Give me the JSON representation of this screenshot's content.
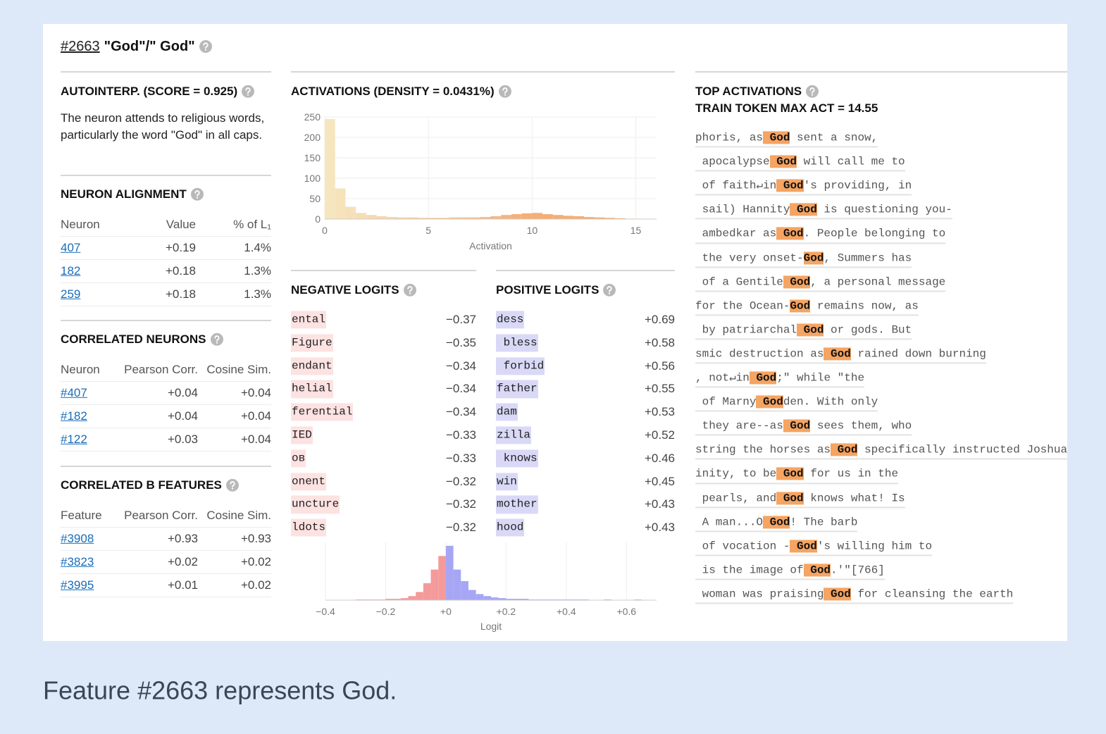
{
  "header": {
    "id": "#2663",
    "title": "\"God\"/\" God\""
  },
  "autointerp": {
    "heading": "AUTOINTERP. (SCORE = 0.925)",
    "text": "The neuron attends to religious words, particularly the word \"God\" in all caps."
  },
  "neuron_alignment": {
    "heading": "NEURON ALIGNMENT",
    "columns": [
      "Neuron",
      "Value",
      "% of L₁"
    ],
    "rows": [
      [
        "407",
        "+0.19",
        "1.4%"
      ],
      [
        "182",
        "+0.18",
        "1.3%"
      ],
      [
        "259",
        "+0.18",
        "1.3%"
      ]
    ]
  },
  "correlated_neurons": {
    "heading": "CORRELATED NEURONS",
    "columns": [
      "Neuron",
      "Pearson Corr.",
      "Cosine Sim."
    ],
    "rows": [
      [
        "#407",
        "+0.04",
        "+0.04"
      ],
      [
        "#182",
        "+0.04",
        "+0.04"
      ],
      [
        "#122",
        "+0.03",
        "+0.04"
      ]
    ]
  },
  "correlated_features": {
    "heading": "CORRELATED B FEATURES",
    "columns": [
      "Feature",
      "Pearson Corr.",
      "Cosine Sim."
    ],
    "rows": [
      [
        "#3908",
        "+0.93",
        "+0.93"
      ],
      [
        "#3823",
        "+0.02",
        "+0.02"
      ],
      [
        "#3995",
        "+0.01",
        "+0.02"
      ]
    ]
  },
  "activations": {
    "heading": "ACTIVATIONS (DENSITY = 0.0431%)",
    "chart": {
      "type": "histogram",
      "x_label": "Activation",
      "bins": [
        0,
        0.5,
        1,
        1.5,
        2,
        2.5,
        3,
        3.5,
        4,
        4.5,
        5,
        5.5,
        6,
        6.5,
        7,
        7.5,
        8,
        8.5,
        9,
        9.5,
        10,
        10.5,
        11,
        11.5,
        12,
        12.5,
        13,
        13.5,
        14,
        14.5,
        15
      ],
      "counts": [
        245,
        75,
        30,
        15,
        10,
        7,
        5,
        4,
        4,
        3,
        3,
        3,
        4,
        4,
        4,
        5,
        7,
        10,
        12,
        14,
        15,
        12,
        10,
        8,
        7,
        5,
        4,
        3,
        2,
        1
      ],
      "xlim": [
        0,
        16
      ],
      "ylim": [
        0,
        250
      ],
      "xticks": [
        0,
        5,
        10,
        15
      ],
      "yticks": [
        0,
        50,
        100,
        150,
        200,
        250
      ],
      "color_low": "#f6e7c2",
      "color_high": "#f6ad72",
      "grid": true
    }
  },
  "negative_logits": {
    "heading": "NEGATIVE LOGITS",
    "color": "#fde2e2",
    "rows": [
      [
        "ental",
        "−0.37"
      ],
      [
        "Figure",
        "−0.35"
      ],
      [
        "endant",
        "−0.34"
      ],
      [
        "helial",
        "−0.34"
      ],
      [
        "ferential",
        "−0.34"
      ],
      [
        "IED",
        "−0.33"
      ],
      [
        "ов",
        "−0.33"
      ],
      [
        "onent",
        "−0.32"
      ],
      [
        "uncture",
        "−0.32"
      ],
      [
        "ldots",
        "−0.32"
      ]
    ]
  },
  "positive_logits": {
    "heading": "POSITIVE LOGITS",
    "color": "#d9d9f7",
    "rows": [
      [
        "dess",
        "+0.69"
      ],
      [
        " bless",
        "+0.58"
      ],
      [
        " forbid",
        "+0.56"
      ],
      [
        "father",
        "+0.55"
      ],
      [
        "dam",
        "+0.53"
      ],
      [
        "zilla",
        "+0.52"
      ],
      [
        " knows",
        "+0.46"
      ],
      [
        "win",
        "+0.45"
      ],
      [
        "mother",
        "+0.43"
      ],
      [
        "hood",
        "+0.43"
      ]
    ]
  },
  "logits_chart": {
    "type": "histogram",
    "x_label": "Logit",
    "bins": [
      -0.4,
      -0.375,
      -0.35,
      -0.325,
      -0.3,
      -0.275,
      -0.25,
      -0.225,
      -0.2,
      -0.175,
      -0.15,
      -0.125,
      -0.1,
      -0.075,
      -0.05,
      -0.025,
      0,
      0.025,
      0.05,
      0.075,
      0.1,
      0.125,
      0.15,
      0.175,
      0.2,
      0.225,
      0.25,
      0.275,
      0.3,
      0.325,
      0.35,
      0.375,
      0.4,
      0.425,
      0.45,
      0.475,
      0.5,
      0.525,
      0.55,
      0.575,
      0.6,
      0.625,
      0.65
    ],
    "counts": [
      0,
      0,
      0,
      0,
      1,
      1,
      1,
      1,
      2,
      2,
      3,
      6,
      12,
      25,
      45,
      65,
      80,
      45,
      28,
      15,
      9,
      6,
      4,
      3,
      2,
      2,
      2,
      1,
      1,
      1,
      1,
      1,
      1,
      1,
      1,
      0,
      0,
      1,
      0,
      0,
      0,
      1
    ],
    "xlim": [
      -0.4,
      0.7
    ],
    "ylim": [
      0,
      85
    ],
    "xticks": [
      {
        "value": -0.4,
        "label": "−0.4"
      },
      {
        "value": -0.2,
        "label": "−0.2"
      },
      {
        "value": 0,
        "label": "+0"
      },
      {
        "value": 0.2,
        "label": "+0.2"
      },
      {
        "value": 0.4,
        "label": "+0.4"
      },
      {
        "value": 0.6,
        "label": "+0.6"
      }
    ],
    "negative_color": "#f59a9a",
    "positive_color": "#a6a6f5",
    "grid": true
  },
  "top_activations": {
    "heading": "TOP ACTIVATIONS",
    "subheading": "TRAIN TOKEN MAX ACT = 14.55",
    "token_color": "#f5a462",
    "rows": [
      [
        "phoris, as",
        " God",
        " sent a snow,"
      ],
      [
        " apocalypse",
        " God",
        " will call me to"
      ],
      [
        " of faith↵in",
        " God",
        "'s providing, in"
      ],
      [
        " sail) Hannity",
        " God",
        " is questioning you-"
      ],
      [
        " ambedkar as",
        " God",
        ". People belonging to"
      ],
      [
        " the very onset-",
        "God",
        ", Summers has"
      ],
      [
        " of a Gentile",
        " God",
        ", a personal message"
      ],
      [
        "for the Ocean-",
        "God",
        " remains now, as"
      ],
      [
        " by patriarchal",
        " God",
        " or gods. But"
      ],
      [
        "smic destruction as",
        " God",
        " rained down burning"
      ],
      [
        ", not↵in",
        " God",
        ";\" while \"the"
      ],
      [
        " of Marny",
        " God",
        "den. With only"
      ],
      [
        " they are--as",
        " God",
        " sees them, who"
      ],
      [
        "string the horses as",
        " God",
        " specifically instructed Joshua"
      ],
      [
        "inity, to be",
        " God",
        " for us in the"
      ],
      [
        " pearls, and",
        " God",
        " knows what! Is"
      ],
      [
        " A man...O",
        " God",
        "! The barb"
      ],
      [
        " of vocation -",
        " God",
        "'s willing him to"
      ],
      [
        " is the image of",
        " God",
        ".'\"[766]"
      ],
      [
        " woman was praising",
        " God",
        " for cleansing the earth"
      ]
    ]
  },
  "caption": "Feature #2663 represents God."
}
